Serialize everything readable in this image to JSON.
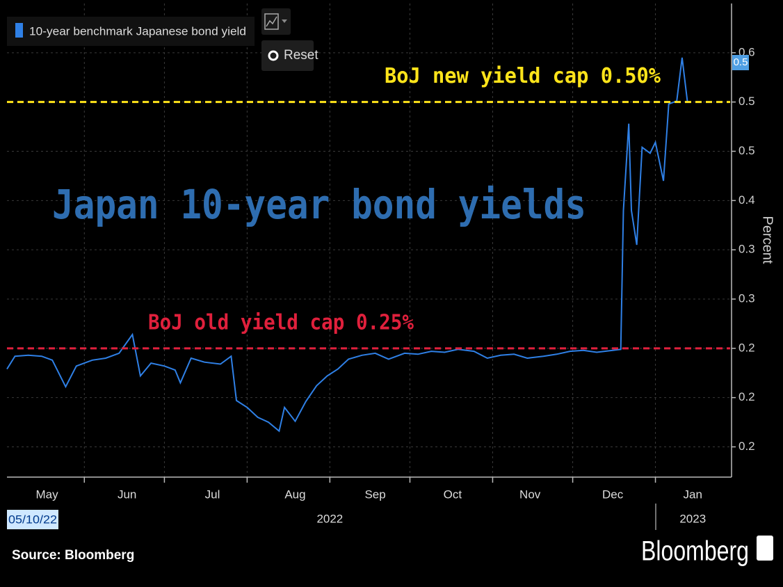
{
  "chart_data": {
    "type": "line",
    "title": "Japan 10-year bond yields",
    "y_label": "Percent",
    "series": [
      {
        "name": "10-year benchmark Japanese bond yield",
        "color": "#2f80e6",
        "x": [
          122,
          125,
          130,
          135,
          139,
          144,
          148,
          154,
          159,
          164,
          169,
          172,
          176,
          181,
          185,
          187,
          191,
          196,
          202,
          206,
          208,
          212,
          216,
          220,
          224,
          226,
          230,
          234,
          238,
          242,
          246,
          250,
          255,
          260,
          265,
          271,
          276,
          281,
          286,
          291,
          297,
          302,
          307,
          312,
          317,
          323,
          328,
          333,
          338,
          343,
          349,
          352,
          353,
          355,
          356,
          358,
          360,
          363,
          365,
          368,
          370,
          373,
          375,
          377
        ],
        "values": [
          0.229,
          0.242,
          0.243,
          0.242,
          0.238,
          0.211,
          0.232,
          0.238,
          0.24,
          0.245,
          0.264,
          0.222,
          0.235,
          0.232,
          0.228,
          0.215,
          0.24,
          0.236,
          0.234,
          0.242,
          0.197,
          0.19,
          0.18,
          0.175,
          0.166,
          0.19,
          0.176,
          0.196,
          0.212,
          0.222,
          0.229,
          0.239,
          0.243,
          0.245,
          0.239,
          0.245,
          0.244,
          0.247,
          0.246,
          0.249,
          0.247,
          0.24,
          0.243,
          0.244,
          0.24,
          0.242,
          0.244,
          0.247,
          0.248,
          0.246,
          0.248,
          0.249,
          0.39,
          0.478,
          0.39,
          0.355,
          0.454,
          0.448,
          0.459,
          0.42,
          0.498,
          0.501,
          0.545,
          0.5
        ]
      }
    ],
    "xlim": [
      122,
      393
    ],
    "ylim": [
      0.12,
      0.6
    ],
    "yticks": [
      {
        "value": 0.55,
        "label": "0.6"
      },
      0.5,
      {
        "value": 0.45,
        "label": "0.5"
      },
      0.4,
      {
        "value": 0.35,
        "label": "0.3"
      },
      0.3,
      {
        "value": 0.25,
        "label": "0.2"
      },
      0.2,
      {
        "value": 0.15,
        "label": "0.2"
      }
    ],
    "xticks": [
      {
        "value": 137,
        "label": "May"
      },
      {
        "value": 167,
        "label": "Jun"
      },
      {
        "value": 199,
        "label": "Jul"
      },
      {
        "value": 230,
        "label": "Aug"
      },
      {
        "value": 260,
        "label": "Sep"
      },
      {
        "value": 289,
        "label": "Oct"
      },
      {
        "value": 318,
        "label": "Nov"
      },
      {
        "value": 349,
        "label": "Dec"
      },
      {
        "value": 379,
        "label": "Jan"
      }
    ],
    "x_grid": [
      151,
      181,
      212,
      243,
      273,
      304,
      334,
      365
    ],
    "year_labels": [
      {
        "value": 243,
        "label": "2022"
      },
      {
        "value": 379,
        "label": "2023"
      }
    ],
    "reference_lines": [
      {
        "value": 0.5,
        "label": "BoJ new yield cap 0.50%",
        "color": "#ffe41a"
      },
      {
        "value": 0.25,
        "label": "BoJ old yield cap 0.25%",
        "color": "#e0203c"
      }
    ],
    "last_value": {
      "value": 0.54,
      "label": "0.5"
    },
    "cursor_date_label": "05/10/22",
    "source": "Source: Bloomberg",
    "brand": "Bloomberg",
    "grid": true
  },
  "ui": {
    "reset": "Reset"
  }
}
